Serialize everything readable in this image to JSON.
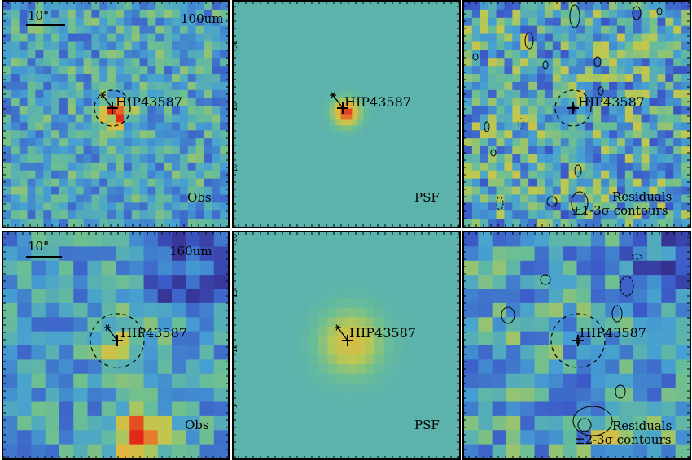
{
  "rows": [
    {
      "band": "100um",
      "scale_bar": "10\"",
      "target": "HIP43587",
      "panels": [
        {
          "kind": "obs",
          "label": "Obs"
        },
        {
          "kind": "psf",
          "label": "PSF"
        },
        {
          "kind": "res",
          "label_line1": "Residuals",
          "label_line2": "±1-3σ contours"
        }
      ],
      "psf_ticks": [
        "30",
        "20",
        "10"
      ]
    },
    {
      "band": "160um",
      "scale_bar": "10\"",
      "target": "HIP43587",
      "panels": [
        {
          "kind": "obs",
          "label": "Obs"
        },
        {
          "kind": "psf",
          "label": "PSF"
        },
        {
          "kind": "res",
          "label_line1": "Residuals",
          "label_line2": "±2-3σ contours"
        }
      ],
      "psf_ticks": [
        "20",
        "15",
        "10",
        "5"
      ]
    }
  ],
  "colors": {
    "bg_model": "#67b399",
    "peak": "#e2321e",
    "low": "#3b2f8f"
  }
}
